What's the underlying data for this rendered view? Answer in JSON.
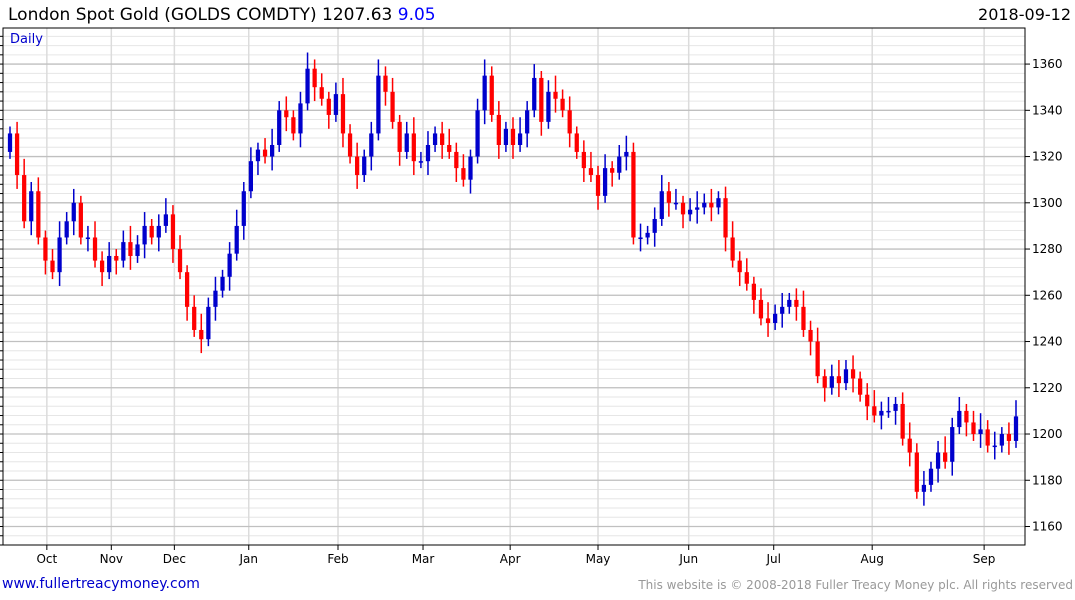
{
  "header": {
    "title": "London Spot Gold (GOLDS COMDTY)",
    "last_price": "1207.63",
    "change": "9.05",
    "date": "2018-09-12",
    "period": "Daily"
  },
  "footer": {
    "link": "www.fullertreacymoney.com",
    "copyright": "This website is © 2008-2018 Fuller Treacy Money plc. All rights reserved"
  },
  "colors": {
    "up": "#0000cc",
    "down": "#ff0000",
    "grid_major": "#c0c0c0",
    "grid_minor": "#e6e6e6"
  },
  "chart_data": {
    "type": "candlestick",
    "title": "London Spot Gold (GOLDS COMDTY)",
    "ylabel": "",
    "xlabel": "",
    "ylim": [
      1152,
      1375.6
    ],
    "y_ticks": [
      1160,
      1180,
      1200,
      1220,
      1240,
      1260,
      1280,
      1300,
      1320,
      1340,
      1360
    ],
    "y_minor_step": 4,
    "grid": true,
    "first_open": 1322,
    "closes": [
      1330,
      1312,
      1292,
      1305,
      1285,
      1275,
      1270,
      1285,
      1292,
      1300,
      1285,
      1285,
      1275,
      1270,
      1277,
      1275,
      1283,
      1277,
      1282,
      1290,
      1285,
      1290,
      1295,
      1280,
      1270,
      1255,
      1245,
      1241,
      1255,
      1262,
      1268,
      1278,
      1290,
      1305,
      1318,
      1323,
      1320,
      1325,
      1340,
      1337,
      1330,
      1343,
      1358,
      1350,
      1345,
      1338,
      1347,
      1330,
      1320,
      1312,
      1320,
      1330,
      1355,
      1348,
      1335,
      1322,
      1330,
      1318,
      1318,
      1325,
      1330,
      1325,
      1322,
      1315,
      1310,
      1320,
      1340,
      1355,
      1338,
      1325,
      1332,
      1325,
      1330,
      1340,
      1354,
      1335,
      1348,
      1345,
      1340,
      1330,
      1322,
      1315,
      1312,
      1303,
      1315,
      1313,
      1320,
      1322,
      1285,
      1285,
      1287,
      1293,
      1305,
      1300,
      1300,
      1295,
      1297,
      1298,
      1300,
      1298,
      1302,
      1285,
      1275,
      1270,
      1265,
      1258,
      1250,
      1248,
      1252,
      1255,
      1258,
      1255,
      1245,
      1240,
      1225,
      1220,
      1225,
      1222,
      1228,
      1224,
      1217,
      1212,
      1208,
      1210,
      1210,
      1213,
      1198,
      1192,
      1175,
      1178,
      1185,
      1192,
      1188,
      1203,
      1210,
      1205,
      1200,
      1202,
      1195,
      1195,
      1200,
      1197,
      1207.63
    ],
    "month_ticks": [
      {
        "label": "Oct",
        "index": 5.2
      },
      {
        "label": "Nov",
        "index": 14.3
      },
      {
        "label": "Dec",
        "index": 23.2
      },
      {
        "label": "Jan",
        "index": 33.7
      },
      {
        "label": "Feb",
        "index": 46.3
      },
      {
        "label": "Mar",
        "index": 58.3
      },
      {
        "label": "Apr",
        "index": 70.6
      },
      {
        "label": "May",
        "index": 83
      },
      {
        "label": "Jun",
        "index": 95.8
      },
      {
        "label": "Jul",
        "index": 107.8
      },
      {
        "label": "Aug",
        "index": 121.7
      },
      {
        "label": "Sep",
        "index": 137.5
      }
    ]
  }
}
